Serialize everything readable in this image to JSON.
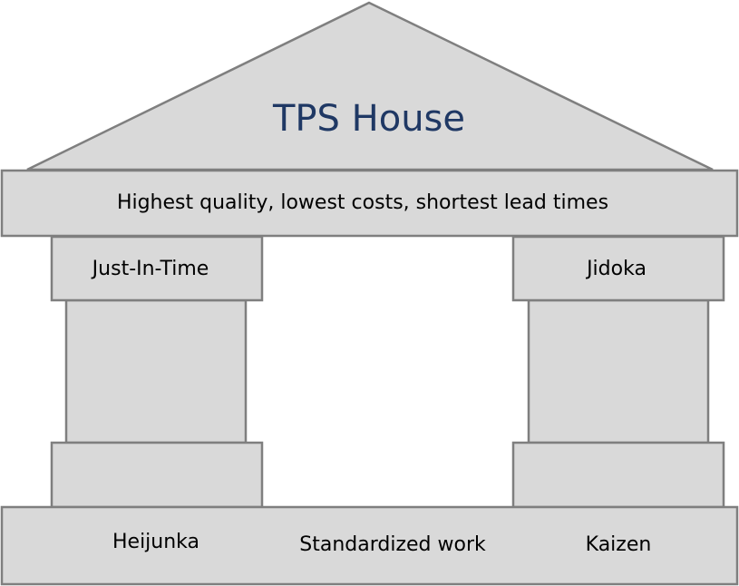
{
  "roof": {
    "title": "TPS House"
  },
  "beam": {
    "text": "Highest quality, lowest costs, shortest lead times"
  },
  "pillars": {
    "left": {
      "label": "Just-In-Time"
    },
    "right": {
      "label": "Jidoka"
    }
  },
  "foundation": {
    "items": [
      "Heijunka",
      "Standardized work",
      "Kaizen"
    ]
  },
  "colors": {
    "fill": "#d9d9d9",
    "stroke": "#7f7f7f",
    "title": "#1f3864",
    "text": "#000000"
  }
}
